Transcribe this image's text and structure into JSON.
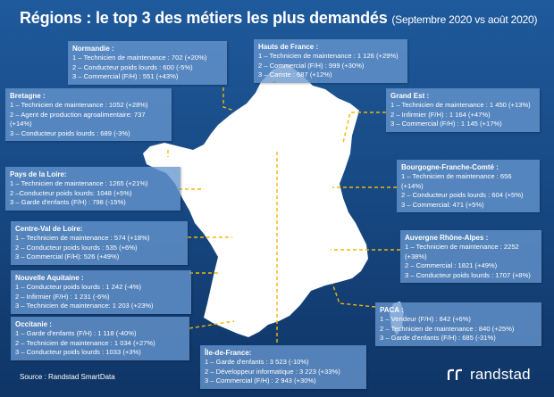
{
  "title": "Régions : le top 3 des métiers les plus demandés",
  "subtitle": "(Septembre 2020 vs août 2020)",
  "source": "Source : Randstad SmartData",
  "brand": "randstad",
  "colors": {
    "background": "#1a4f8d",
    "box": "#6796ce",
    "map": "#ffffff",
    "connector": "#f2b705"
  },
  "regions": [
    {
      "name": "Normandie :",
      "lines": [
        "1 – Technicien de maintenance : 702 (+20%)",
        "2 – Conducteur poids lourds : 600 (-5%)",
        "3 – Commercial (F/H) : 551 (+43%)"
      ]
    },
    {
      "name": "Hauts de France :",
      "lines": [
        "1 – Technicien de maintenance : 1 126 (+29%)",
        "2 – Commercial (F/H) : 999 (+30%)",
        "3 – Cariste : 687 (+12%)"
      ]
    },
    {
      "name": "Bretagne :",
      "lines": [
        "1 – Technicien de maintenance : 1052 (+28%)",
        "2 – Agent de production agroalimentaire: 737 (+14%)",
        "3 – Conducteur poids lourds : 689 (-3%)"
      ]
    },
    {
      "name": "Grand Est :",
      "lines": [
        "1 – Technicien de maintenance : 1 450 (+13%)",
        "2 – Infirmier (F/H) : 1 164 (+47%)",
        "3 – Commercial (F/H) : 1 145 (+17%)"
      ]
    },
    {
      "name": "Pays de la Loire:",
      "lines": [
        "1 – Technicien de maintenance : 1265 (+21%)",
        "2 –Conducteur poids lourds: 1048 (+5%)",
        "3 – Garde d'enfants (F/H) : 798 (-15%)"
      ]
    },
    {
      "name": "Bourgogne-Franche-Comté :",
      "lines": [
        "1 – Technicien de maintenance : 656 (+14%)",
        "2 – Conducteur poids lourds : 604 (+5%)",
        "3 – Commercial: 471 (+5%)"
      ]
    },
    {
      "name": "Centre-Val de Loire:",
      "lines": [
        "1 – Technicien de maintenance : 574 (+18%)",
        "2 – Conducteur poids lourds : 535 (+6%)",
        "3 – Commercial (F/H): 526 (+49%)"
      ]
    },
    {
      "name": "Auvergne Rhône-Alpes :",
      "lines": [
        "1 – Technicien de maintenance : 2252 (+38%)",
        "2 – Commercial : 1821 (+49%)",
        "3 – Conducteur poids lourds : 1707 (+8%)"
      ]
    },
    {
      "name": "Nouvelle Aquitaine :",
      "lines": [
        "1 – Conducteur poids lourds : 1 242 (-4%)",
        "2 – Infirmier (F/H) : 1 231 (-6%)",
        "3 – Technicien de maintenance: 1 203 (+23%)"
      ]
    },
    {
      "name": "PACA :",
      "lines": [
        "1 – Vendeur (F/H) : 842 (+6%)",
        "2 – Technicien de maintenance : 840 (+25%)",
        "3 – Garde d'enfants (F/H) : 685 (-31%)"
      ]
    },
    {
      "name": "Occitanie :",
      "lines": [
        "1 – Garde d'enfants (F/H) : 1 118 (-40%)",
        "2 – Technicien de maintenance : 1 034 (+27%)",
        "3 – Conducteur poids lourds : 1033 (+3%)"
      ]
    },
    {
      "name": "Île-de-France:",
      "lines": [
        "1 – Garde d'enfants : 3 523 (-10%)",
        "2 – Développeur informatique : 3 223 (+33%)",
        "3 – Commercial (F/H) : 2 943 (+30%)"
      ]
    }
  ]
}
